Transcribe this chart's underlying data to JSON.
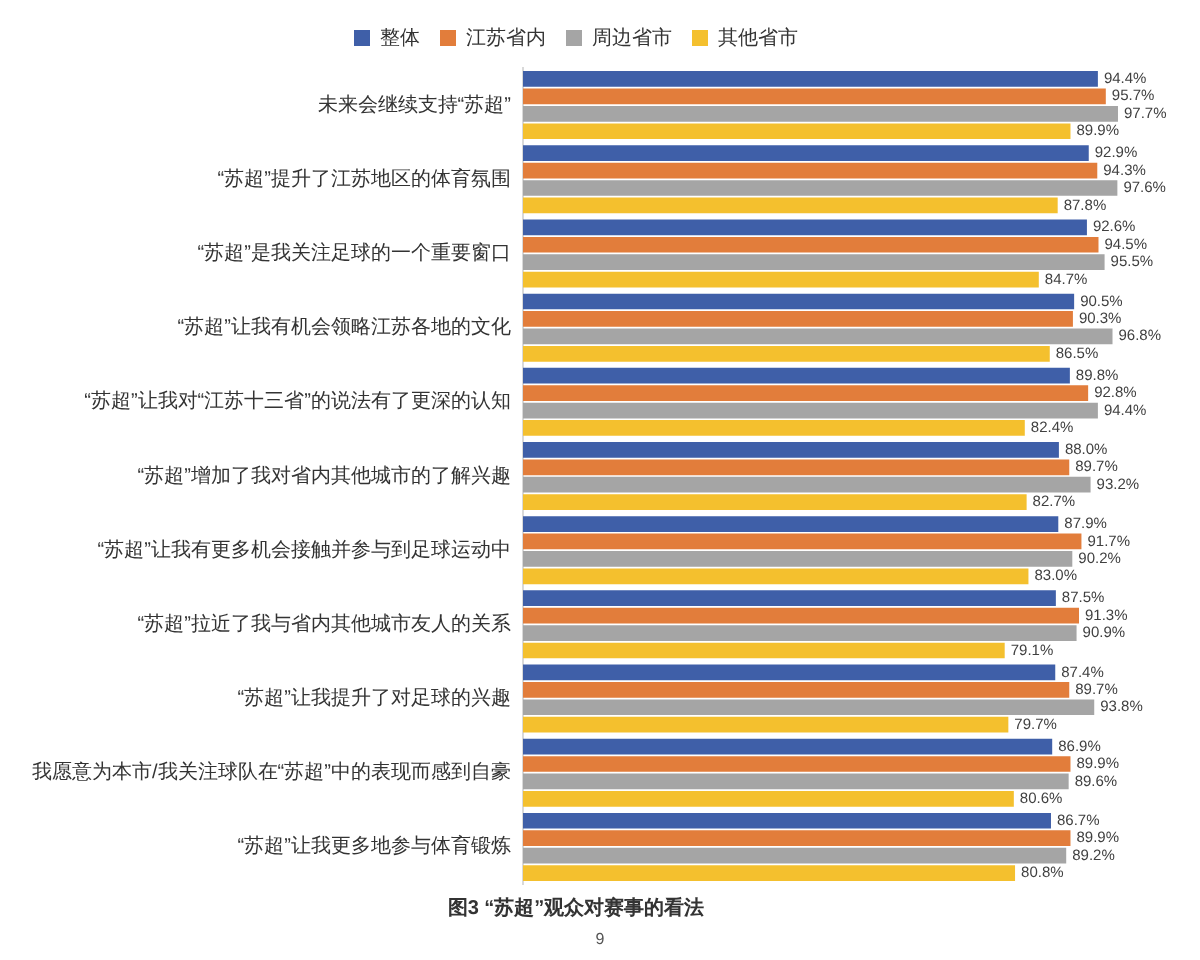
{
  "chart_data": {
    "type": "bar",
    "orientation": "horizontal",
    "title": "图3 “苏超”观众对赛事的看法",
    "legend": "top",
    "categories": [
      "未来会继续支持“苏超”",
      "“苏超”提升了江苏地区的体育氛围",
      "“苏超”是我关注足球的一个重要窗口",
      "“苏超”让我有机会领略江苏各地的文化",
      "“苏超”让我对“江苏十三省”的说法有了更深的认知",
      "“苏超”增加了我对省内其他城市的了解兴趣",
      "“苏超”让我有更多机会接触并参与到足球运动中",
      "“苏超”拉近了我与省内其他城市友人的关系",
      "“苏超”让我提升了对足球的兴趣",
      "我愿意为本市/我关注球队在“苏超”中的表现而感到自豪",
      "“苏超”让我更多地参与体育锻炼"
    ],
    "series": [
      {
        "name": "整体",
        "color": "#3f5fa8",
        "values": [
          94.4,
          92.9,
          92.6,
          90.5,
          89.8,
          88.0,
          87.9,
          87.5,
          87.4,
          86.9,
          86.7
        ],
        "value_labels": [
          "94.4%",
          "92.9%",
          "92.6%",
          "90.5%",
          "89.8%",
          "88.0%",
          "87.9%",
          "87.5%",
          "87.4%",
          "86.9%",
          "86.7%"
        ]
      },
      {
        "name": "江苏省内",
        "color": "#e27d3b",
        "values": [
          95.7,
          94.3,
          94.5,
          90.3,
          92.8,
          89.7,
          91.7,
          91.3,
          89.7,
          89.9,
          89.9
        ],
        "value_labels": [
          "95.7%",
          "94.3%",
          "94.5%",
          "90.3%",
          "92.8%",
          "89.7%",
          "91.7%",
          "91.3%",
          "89.7%",
          "89.9%",
          "89.9%"
        ]
      },
      {
        "name": "周边省市",
        "color": "#a5a5a5",
        "values": [
          97.7,
          97.6,
          95.5,
          96.8,
          94.4,
          93.2,
          90.2,
          90.9,
          93.8,
          89.6,
          89.2
        ],
        "value_labels": [
          "97.7%",
          "97.6%",
          "95.5%",
          "96.8%",
          "94.4%",
          "93.2%",
          "90.2%",
          "90.9%",
          "93.8%",
          "89.6%",
          "89.2%"
        ]
      },
      {
        "name": "其他省市",
        "color": "#f4c02e",
        "values": [
          89.9,
          87.8,
          84.7,
          86.5,
          82.4,
          82.7,
          83.0,
          79.1,
          79.7,
          80.6,
          80.8
        ],
        "value_labels": [
          "89.9%",
          "87.8%",
          "84.7%",
          "86.5%",
          "82.4%",
          "82.7%",
          "83.0%",
          "79.1%",
          "79.7%",
          "80.6%",
          "80.8%"
        ]
      }
    ],
    "annotations": [
      "9"
    ]
  }
}
